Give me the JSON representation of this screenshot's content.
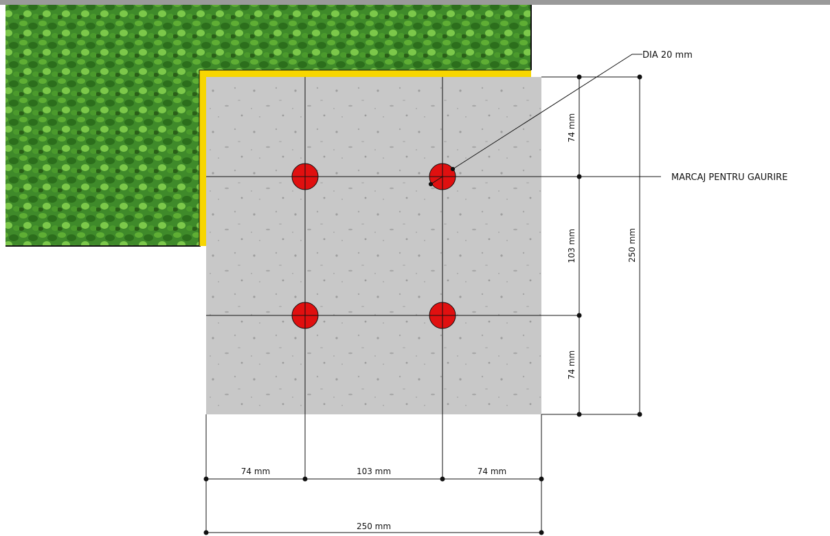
{
  "colors": {
    "top_bar": "#9a9a9a",
    "grass": "#3f8a2a",
    "grass_light": "#6cbf3e",
    "yellow_edge": "#f7d600",
    "concrete": "#c9c9c9",
    "hole": "#e01010",
    "line": "#111111"
  },
  "annotations": {
    "diameter": "DIA 20 mm",
    "marking": "MARCAJ PENTRU GAURIRE"
  },
  "dimensions": {
    "right_top": "74 mm",
    "right_mid": "103 mm",
    "right_bottom": "74 mm",
    "right_total": "250 mm",
    "bottom_left": "74 mm",
    "bottom_mid": "103 mm",
    "bottom_right": "74 mm",
    "bottom_total": "250 mm"
  },
  "holes": [
    {
      "label": "hole-top-left"
    },
    {
      "label": "hole-top-right"
    },
    {
      "label": "hole-bottom-left"
    },
    {
      "label": "hole-bottom-right"
    }
  ]
}
